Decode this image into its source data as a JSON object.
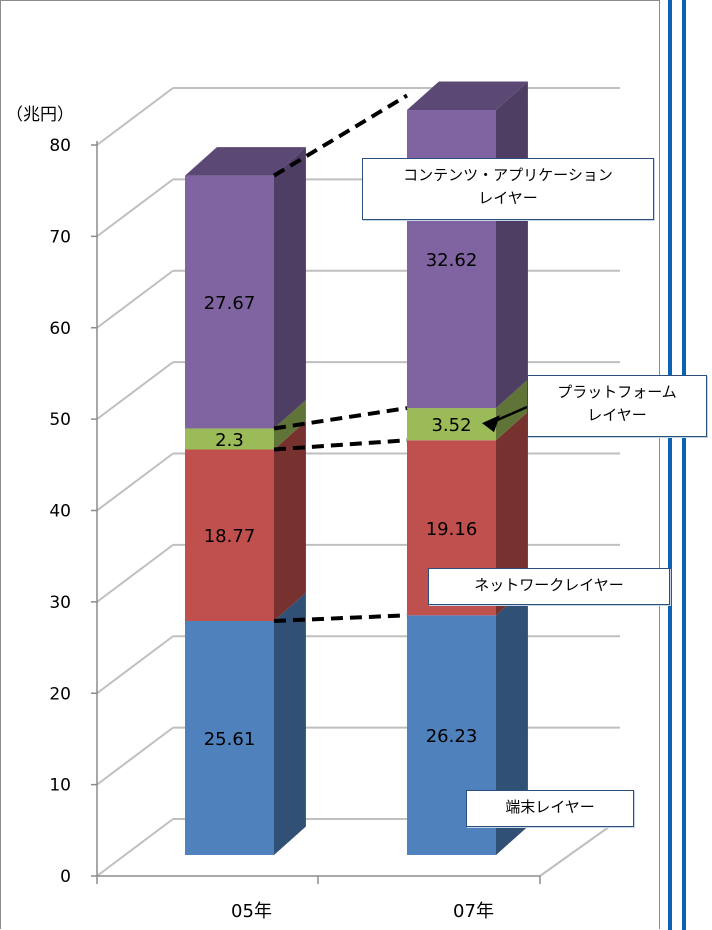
{
  "unit_label": "（兆円）",
  "callouts": {
    "contents": "コンテンツ・アプリケーション\nレイヤー",
    "platform": "プラットフォーム\nレイヤー",
    "network": "ネットワークレイヤー",
    "terminal": "端末レイヤー"
  },
  "colors": {
    "terminal": "#4f81bd",
    "network": "#c0504d",
    "platform": "#9bbb59",
    "contents": "#8064a2",
    "divider": "#0a64b4"
  },
  "chart_data": {
    "type": "bar",
    "stacked": true,
    "three_d": true,
    "categories": [
      "05年",
      "07年"
    ],
    "series": [
      {
        "name": "端末レイヤー",
        "values": [
          25.61,
          26.23
        ]
      },
      {
        "name": "ネットワークレイヤー",
        "values": [
          18.77,
          19.16
        ]
      },
      {
        "name": "プラットフォームレイヤー",
        "values": [
          2.3,
          3.52
        ]
      },
      {
        "name": "コンテンツ・アプリケーションレイヤー",
        "values": [
          27.67,
          32.62
        ]
      }
    ],
    "ylim": [
      0,
      80
    ],
    "yticks": [
      "0",
      "10",
      "20",
      "30",
      "40",
      "50",
      "60",
      "70",
      "80"
    ],
    "data_labels": [
      [
        "25.61",
        "26.23"
      ],
      [
        "18.77",
        "19.16"
      ],
      [
        "2.3",
        "3.52"
      ],
      [
        "27.67",
        "32.62"
      ]
    ],
    "grid": true,
    "legend": "callouts"
  }
}
